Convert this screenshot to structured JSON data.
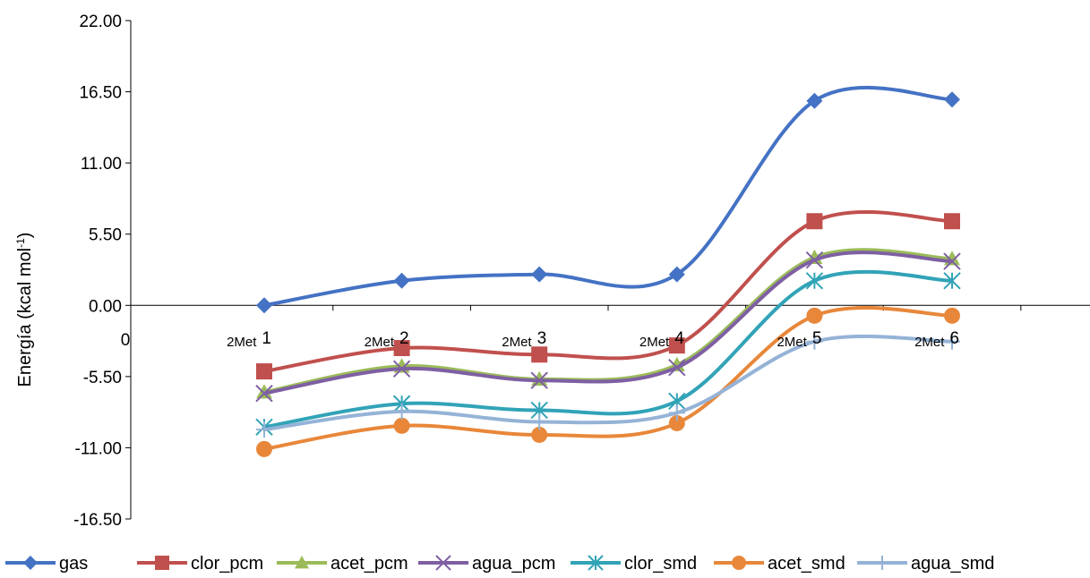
{
  "chart_data": {
    "type": "line",
    "title": "",
    "xlabel": "",
    "ylabel": "Energía (kcal mol",
    "ylabel_superscript": "-1",
    "ylabel_close": ")",
    "origin_label": "0",
    "ylim": [
      -16.5,
      22.0
    ],
    "yticks": [
      "22.00",
      "16.50",
      "11.00",
      "5.50",
      "0.00",
      "-5.50",
      "-11.00",
      "-16.50"
    ],
    "ytick_values": [
      22.0,
      16.5,
      11.0,
      5.5,
      0.0,
      -5.5,
      -11.0,
      -16.5
    ],
    "categories": [
      {
        "prefix": "2Met",
        "number": "1"
      },
      {
        "prefix": "2Met",
        "number": "2"
      },
      {
        "prefix": "2Met",
        "number": "3"
      },
      {
        "prefix": "2Met",
        "number": "4"
      },
      {
        "prefix": "2Met",
        "number": "5"
      },
      {
        "prefix": "2Met",
        "number": "6"
      }
    ],
    "smooth": true,
    "grid": false,
    "legend_position": "bottom",
    "series": [
      {
        "name": "gas",
        "color": "#4472C4",
        "marker": "diamond",
        "values": [
          0.0,
          1.9,
          2.4,
          2.4,
          15.8,
          15.9
        ]
      },
      {
        "name": "clor_pcm",
        "color": "#C0504D",
        "marker": "square",
        "values": [
          -5.1,
          -3.3,
          -3.8,
          -3.1,
          6.5,
          6.5
        ]
      },
      {
        "name": "acet_pcm",
        "color": "#9BBB59",
        "marker": "triangle",
        "values": [
          -6.7,
          -4.7,
          -5.7,
          -4.6,
          3.7,
          3.6
        ]
      },
      {
        "name": "agua_pcm",
        "color": "#7E5FA3",
        "marker": "x",
        "values": [
          -6.8,
          -4.9,
          -5.8,
          -4.8,
          3.5,
          3.4
        ]
      },
      {
        "name": "clor_smd",
        "color": "#31A3B7",
        "marker": "star",
        "values": [
          -9.4,
          -7.6,
          -8.1,
          -7.4,
          1.9,
          1.9
        ]
      },
      {
        "name": "acet_smd",
        "color": "#E8873A",
        "marker": "circle",
        "values": [
          -11.1,
          -9.3,
          -10.0,
          -9.1,
          -0.8,
          -0.8
        ]
      },
      {
        "name": "agua_smd",
        "color": "#95B3D7",
        "marker": "plus",
        "values": [
          -9.6,
          -8.2,
          -9.0,
          -8.3,
          -2.8,
          -2.8
        ]
      }
    ]
  }
}
